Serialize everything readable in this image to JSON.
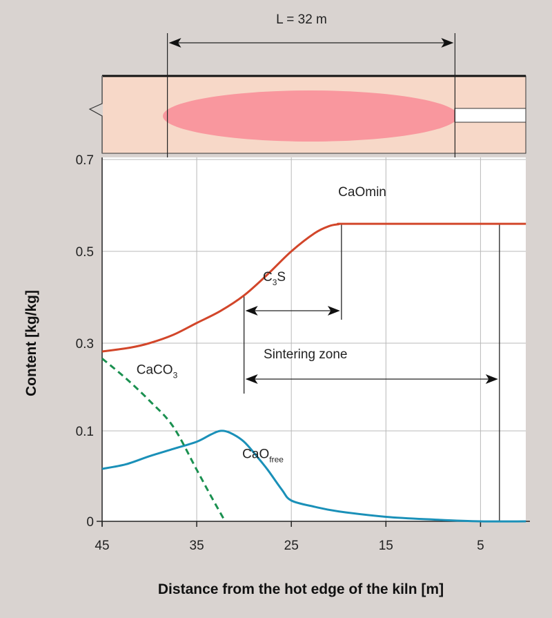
{
  "chart_data": {
    "type": "line",
    "title": "",
    "xlabel": "Distance from the hot edge of the kiln [m]",
    "ylabel": "Content [kg/kg]",
    "xlim": [
      45,
      0
    ],
    "x_ticks": [
      "45",
      "35",
      "25",
      "15",
      "5"
    ],
    "x_tick_values": [
      45,
      35,
      25,
      15,
      5
    ],
    "y_ticks": [
      "0",
      "0.1",
      "0.3",
      "0.5",
      "0.7"
    ],
    "y_tick_values": [
      0,
      0.1,
      0.3,
      0.5,
      0.7
    ],
    "grid": true,
    "series": [
      {
        "name": "CaOmin",
        "color": "#d2462a",
        "style": "solid",
        "x": [
          45,
          42,
          40,
          37.5,
          35,
          32.5,
          30,
          27.5,
          25,
          22.5,
          21,
          20,
          19.7,
          15,
          10,
          5,
          0.2
        ],
        "y": [
          0.281,
          0.29,
          0.3,
          0.318,
          0.344,
          0.37,
          0.404,
          0.45,
          0.5,
          0.54,
          0.555,
          0.559,
          0.56,
          0.56,
          0.56,
          0.56,
          0.56
        ]
      },
      {
        "name": "CaO free",
        "color": "#1a90b8",
        "style": "solid",
        "x": [
          45,
          42.5,
          40,
          37.5,
          35,
          33.5,
          32.5,
          31.5,
          30,
          28.5,
          27.5,
          26,
          25,
          22.5,
          20,
          15,
          10,
          5,
          0.2
        ],
        "y": [
          0.058,
          0.063,
          0.072,
          0.08,
          0.088,
          0.096,
          0.1,
          0.098,
          0.088,
          0.07,
          0.057,
          0.035,
          0.023,
          0.016,
          0.011,
          0.005,
          0.002,
          0.0,
          0.0
        ]
      },
      {
        "name": "CaCO3",
        "color": "#1a9050",
        "style": "dashed",
        "x": [
          45,
          42.5,
          40,
          37.5,
          35,
          33.5,
          32
        ],
        "y": [
          0.265,
          0.22,
          0.169,
          0.11,
          0.057,
          0.028,
          0.0
        ]
      }
    ],
    "annotations": [
      {
        "id": "caomin",
        "text": "CaOmin",
        "x": 17.5,
        "y": 0.62
      },
      {
        "id": "c3s",
        "main": "C",
        "sub": "3",
        "tail": "S",
        "x": 26.8,
        "y": 0.435
      },
      {
        "id": "sinter",
        "text": "Sintering zone",
        "x": 23.5,
        "y": 0.265
      },
      {
        "id": "caco3",
        "main": "CaCO",
        "sub": "3",
        "x": 39.2,
        "y": 0.23
      },
      {
        "id": "caofree",
        "main": "CaO",
        "sub": "free",
        "x": 28,
        "y": 0.07
      }
    ],
    "markers": {
      "c3s_range": [
        30,
        19.7
      ],
      "sintering_zone_range": [
        30,
        3
      ]
    },
    "kiln": {
      "flame_length_label": "L = 32 m",
      "flame_range": [
        38.1,
        7.7
      ]
    }
  }
}
